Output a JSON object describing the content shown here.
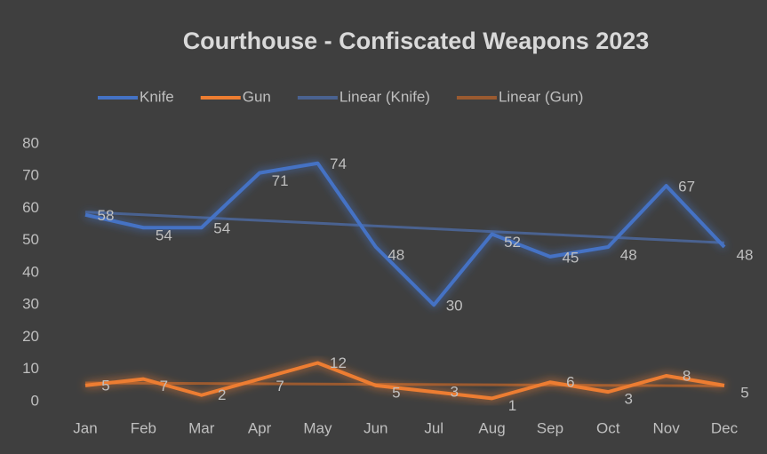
{
  "chart_data": {
    "type": "line",
    "title": "Courthouse - Confiscated Weapons 2023",
    "categories": [
      "Jan",
      "Feb",
      "Mar",
      "Apr",
      "May",
      "Jun",
      "Jul",
      "Aug",
      "Sep",
      "Oct",
      "Nov",
      "Dec"
    ],
    "series": [
      {
        "name": "Knife",
        "color": "#4472c4",
        "values": [
          58,
          54,
          54,
          71,
          74,
          48,
          30,
          52,
          45,
          48,
          67,
          48
        ]
      },
      {
        "name": "Gun",
        "color": "#ed7d31",
        "values": [
          5,
          7,
          2,
          7,
          12,
          5,
          3,
          1,
          6,
          3,
          8,
          5
        ]
      }
    ],
    "trendlines": [
      {
        "name": "Linear (Knife)",
        "series": 0,
        "color": "#4a6290"
      },
      {
        "name": "Linear (Gun)",
        "series": 1,
        "color": "#9a5a30"
      }
    ],
    "ylim": [
      0,
      80
    ],
    "yticks": [
      0,
      10,
      20,
      30,
      40,
      50,
      60,
      70,
      80
    ],
    "data_labels": true,
    "glow": true
  }
}
